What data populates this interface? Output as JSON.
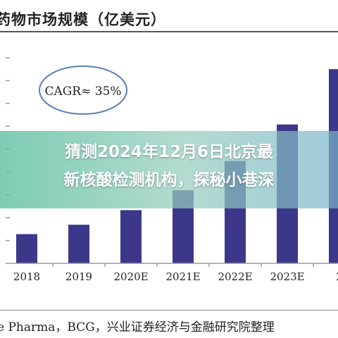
{
  "title": "药物市场规模（亿美元）",
  "source": "e Pharma，BCG，兴业证券经济与金融研究院整理",
  "headline": {
    "line1": "猜测2024年12月6日北京最",
    "line2": "新核酸检测机构，探秘小巷深"
  },
  "annotation": "CAGR≈ 35%",
  "colors": {
    "bar": "#3d3789",
    "ellipse": "#5a7fb5",
    "axis": "#9a9a9a"
  },
  "chart_data": {
    "type": "bar",
    "categories": [
      "2018",
      "2019",
      "2020E",
      "2021E",
      "2022E",
      "2023E",
      "2"
    ],
    "values": [
      12.8,
      16.9,
      23.3,
      32.0,
      44.8,
      60.8,
      85.0
    ],
    "ylim": [
      0,
      90
    ],
    "grid": false,
    "legend": "none"
  }
}
